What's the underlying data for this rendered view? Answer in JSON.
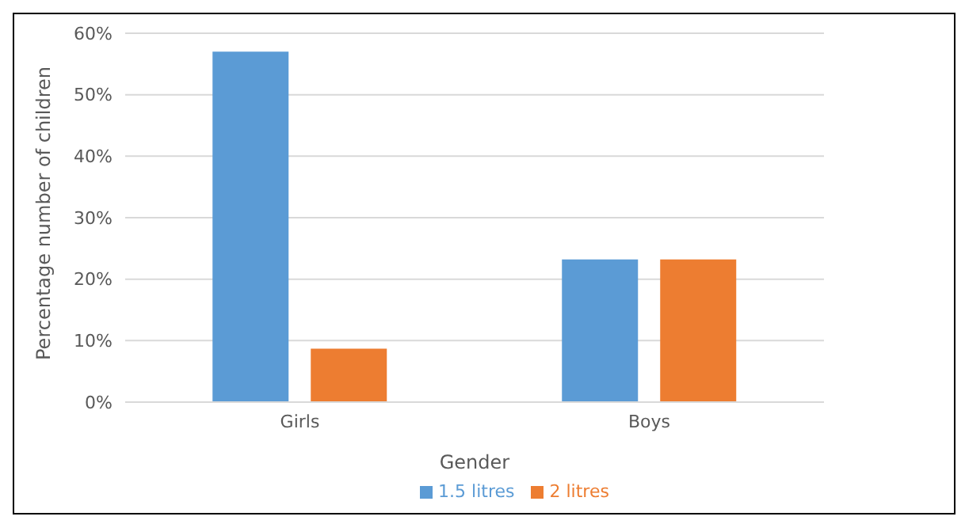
{
  "chart_data": {
    "type": "bar",
    "xlabel": "Gender",
    "ylabel": "Percentage number of children",
    "categories": [
      "Girls",
      "Boys"
    ],
    "series": [
      {
        "name": "1.5 litres",
        "color": "#5b9bd5",
        "values": [
          57,
          23.2
        ]
      },
      {
        "name": "2 litres",
        "color": "#ed7d31",
        "values": [
          8.7,
          23.2
        ]
      }
    ],
    "ylim": [
      0,
      60
    ],
    "yticks": [
      {
        "value": 0,
        "label": "0%"
      },
      {
        "value": 10,
        "label": "10%"
      },
      {
        "value": 20,
        "label": "20%"
      },
      {
        "value": 30,
        "label": "30%"
      },
      {
        "value": 40,
        "label": "40%"
      },
      {
        "value": 50,
        "label": "50%"
      },
      {
        "value": 60,
        "label": "60%"
      }
    ],
    "grid": "y",
    "legend": "bottom"
  }
}
